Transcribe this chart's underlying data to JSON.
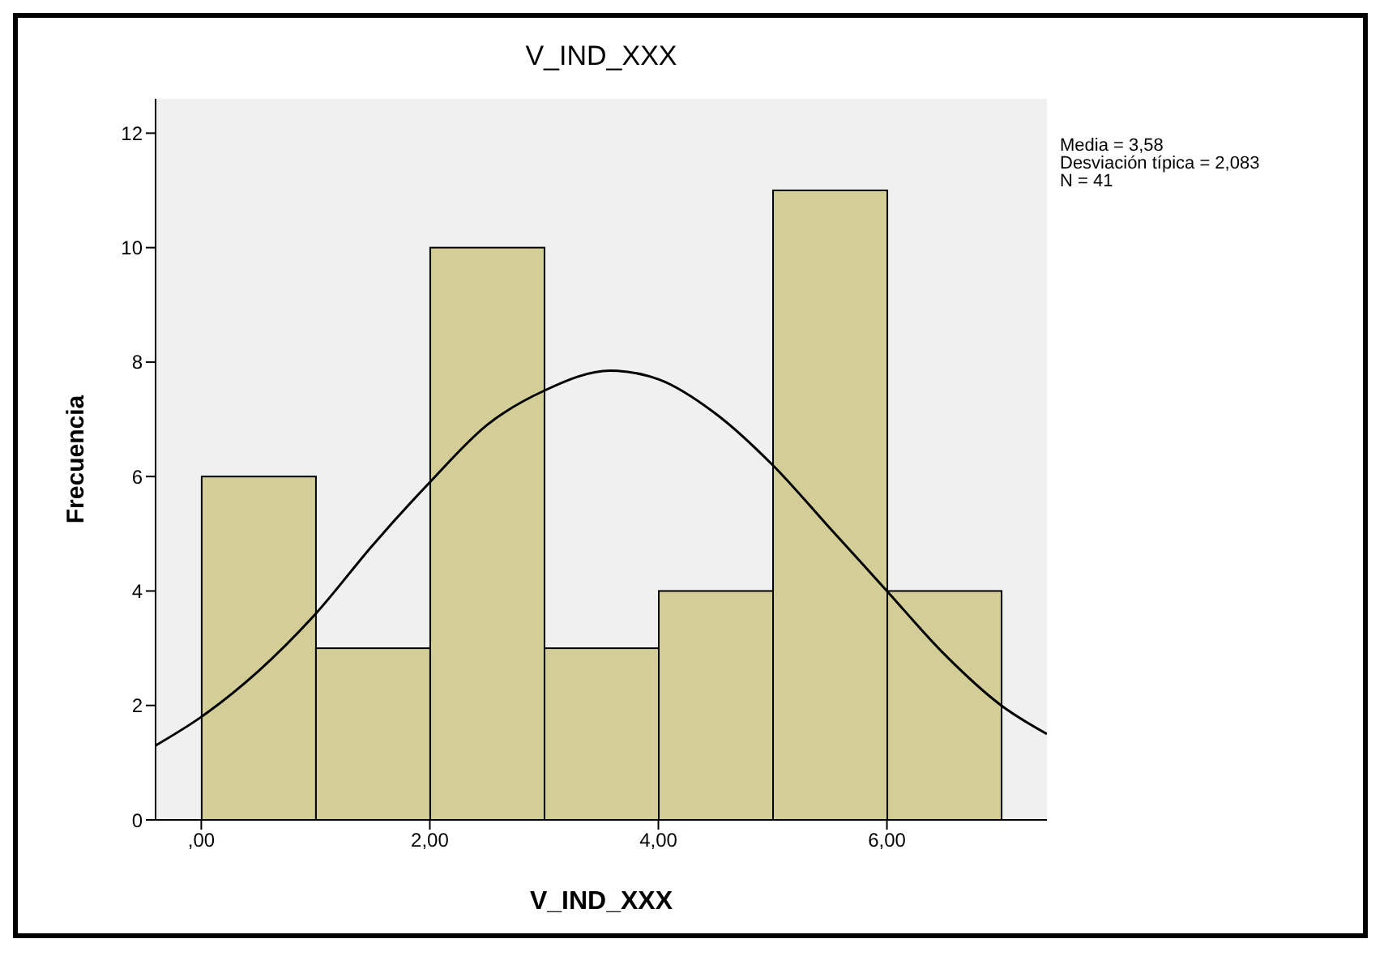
{
  "chart_data": {
    "type": "histogram",
    "title": "V_IND_XXX",
    "xlabel": "V_IND_XXX",
    "ylabel": "Frecuencia",
    "bins": [
      0,
      1,
      2,
      3,
      4,
      5,
      6,
      7
    ],
    "values": [
      6,
      3,
      10,
      3,
      4,
      11,
      4
    ],
    "color": "#d3ce97",
    "series": [
      {
        "type": "line",
        "color": "#000000",
        "x": [
          -0.4,
          0,
          0.5,
          1,
          1.5,
          2,
          2.5,
          3,
          3.58,
          4,
          4.5,
          5,
          5.5,
          6,
          6.5,
          7,
          7.4
        ],
        "values": [
          1.3,
          1.8,
          2.6,
          3.6,
          4.8,
          5.9,
          6.9,
          7.5,
          7.85,
          7.7,
          7.1,
          6.2,
          5.1,
          4.0,
          2.9,
          2.0,
          1.5
        ]
      }
    ],
    "xlim": [
      -0.4,
      7.4
    ],
    "xticks": [
      {
        "value": 0,
        "label": ",00"
      },
      {
        "value": 2,
        "label": "2,00"
      },
      {
        "value": 4,
        "label": "4,00"
      },
      {
        "value": 6,
        "label": "6,00"
      }
    ],
    "ylim": [
      0,
      12.6
    ],
    "yticks": [
      0,
      2,
      4,
      6,
      8,
      10,
      12
    ],
    "marker": "none",
    "line_style": "solid",
    "legend": false,
    "grid": false,
    "annotations": [
      "Media = 3,58",
      "Desviación típica = 2,083",
      "N = 41"
    ]
  }
}
